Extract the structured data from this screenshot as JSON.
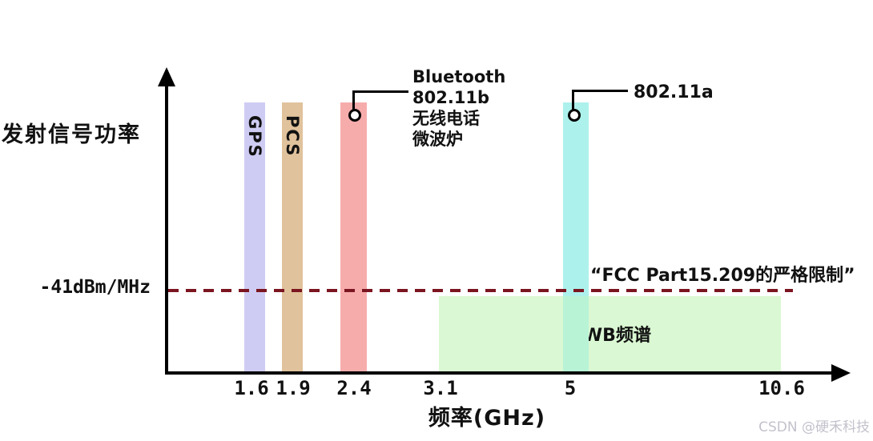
{
  "chart_data": {
    "type": "bar",
    "title": "",
    "xlabel": "频率(GHz)",
    "ylabel": "发射信号功率",
    "x_ticks": [
      "1.6",
      "1.9",
      "2.4",
      "3.1",
      "5",
      "10.6"
    ],
    "bars": [
      {
        "label": "GPS",
        "x_ghz": 1.6,
        "color": "#cfccf3"
      },
      {
        "label": "PCS",
        "x_ghz": 1.9,
        "color": "#e0c29c"
      },
      {
        "label": "",
        "x_ghz": 2.4,
        "color": "#f7acac",
        "callout_lines": [
          "Bluetooth",
          "802.11b",
          "无线电话",
          "微波炉"
        ]
      },
      {
        "label": "",
        "x_ghz": 5,
        "color": "#adf1ec",
        "callout_lines": [
          "802.11a"
        ]
      }
    ],
    "regions": [
      {
        "label": "UWB频谱",
        "x_start_ghz": 3.1,
        "x_end_ghz": 10.6,
        "color": "#daf8d3"
      }
    ],
    "reference_line": {
      "value_label": "-41dBm/MHz",
      "annotation": "“FCC Part15.209的严格限制”",
      "style": "dashed",
      "color": "#7b1520"
    },
    "layout": {
      "legend": "none",
      "grid": "off",
      "axis_arrows": "on"
    }
  },
  "watermark": "CSDN @硬禾科技"
}
